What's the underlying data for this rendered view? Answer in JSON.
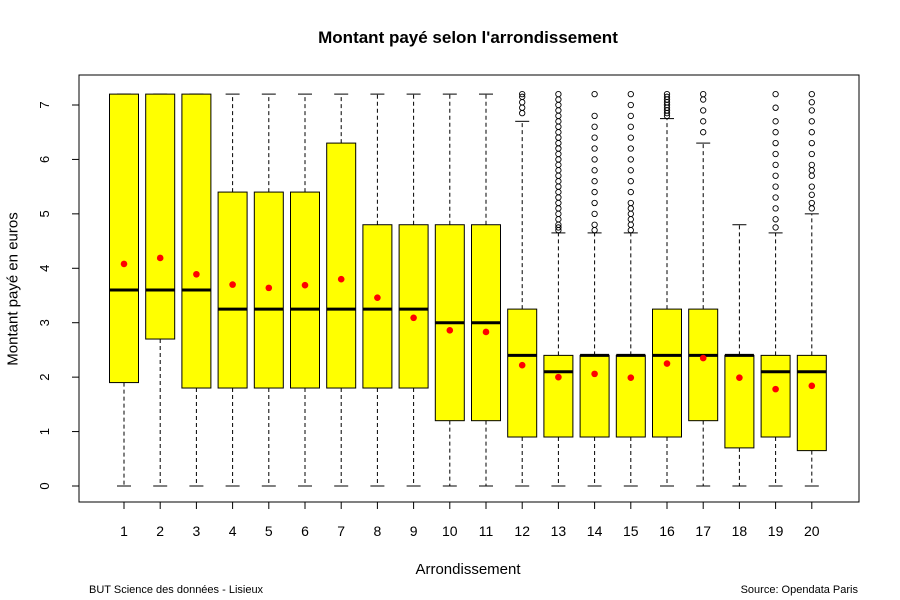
{
  "chart_data": {
    "type": "boxplot",
    "title": "Montant payé selon l'arrondissement",
    "xlabel": "Arrondissement",
    "ylabel": "Montant payé en euros",
    "ylim": [
      0,
      7.5
    ],
    "yticks": [
      0,
      1,
      2,
      3,
      4,
      5,
      6,
      7
    ],
    "grid": false,
    "colors": {
      "box_fill": "#ffff00",
      "mean_point": "#ff0000",
      "median": "#000000"
    },
    "categories": [
      "1",
      "2",
      "3",
      "4",
      "5",
      "6",
      "7",
      "8",
      "9",
      "10",
      "11",
      "12",
      "13",
      "14",
      "15",
      "16",
      "17",
      "18",
      "19",
      "20"
    ],
    "boxes": [
      {
        "min": 0,
        "q1": 1.9,
        "median": 3.6,
        "q3": 7.2,
        "max": 7.2,
        "mean": 4.08,
        "outliers": []
      },
      {
        "min": 0,
        "q1": 2.7,
        "median": 3.6,
        "q3": 7.2,
        "max": 7.2,
        "mean": 4.19,
        "outliers": []
      },
      {
        "min": 0,
        "q1": 1.8,
        "median": 3.6,
        "q3": 7.2,
        "max": 7.2,
        "mean": 3.89,
        "outliers": []
      },
      {
        "min": 0,
        "q1": 1.8,
        "median": 3.25,
        "q3": 5.4,
        "max": 7.2,
        "mean": 3.7,
        "outliers": []
      },
      {
        "min": 0,
        "q1": 1.8,
        "median": 3.25,
        "q3": 5.4,
        "max": 7.2,
        "mean": 3.64,
        "outliers": []
      },
      {
        "min": 0,
        "q1": 1.8,
        "median": 3.25,
        "q3": 5.4,
        "max": 7.2,
        "mean": 3.69,
        "outliers": []
      },
      {
        "min": 0,
        "q1": 1.8,
        "median": 3.25,
        "q3": 6.3,
        "max": 7.2,
        "mean": 3.8,
        "outliers": []
      },
      {
        "min": 0,
        "q1": 1.8,
        "median": 3.25,
        "q3": 4.8,
        "max": 7.2,
        "mean": 3.46,
        "outliers": []
      },
      {
        "min": 0,
        "q1": 1.8,
        "median": 3.25,
        "q3": 4.8,
        "max": 7.2,
        "mean": 3.09,
        "outliers": []
      },
      {
        "min": 0,
        "q1": 1.2,
        "median": 3.0,
        "q3": 4.8,
        "max": 7.2,
        "mean": 2.86,
        "outliers": []
      },
      {
        "min": 0,
        "q1": 1.2,
        "median": 3.0,
        "q3": 4.8,
        "max": 7.2,
        "mean": 2.83,
        "outliers": []
      },
      {
        "min": 0,
        "q1": 0.9,
        "median": 2.4,
        "q3": 3.25,
        "max": 6.7,
        "mean": 2.22,
        "outliers": [
          6.85,
          6.95,
          7.05,
          7.15,
          7.2
        ]
      },
      {
        "min": 0,
        "q1": 0.9,
        "median": 2.1,
        "q3": 2.4,
        "max": 4.65,
        "mean": 2.0,
        "outliers": [
          4.7,
          4.75,
          4.8,
          4.9,
          5.0,
          5.1,
          5.2,
          5.3,
          5.4,
          5.5,
          5.6,
          5.7,
          5.8,
          5.9,
          6.0,
          6.1,
          6.2,
          6.3,
          6.4,
          6.5,
          6.6,
          6.7,
          6.8,
          6.9,
          7.0,
          7.1,
          7.2
        ]
      },
      {
        "min": 0,
        "q1": 0.9,
        "median": 2.4,
        "q3": 2.4,
        "max": 4.65,
        "mean": 2.06,
        "outliers": [
          4.7,
          4.8,
          5.0,
          5.2,
          5.4,
          5.6,
          5.8,
          6.0,
          6.2,
          6.4,
          6.6,
          6.8,
          7.2
        ]
      },
      {
        "min": 0,
        "q1": 0.9,
        "median": 2.4,
        "q3": 2.4,
        "max": 4.65,
        "mean": 1.99,
        "outliers": [
          4.7,
          4.8,
          4.9,
          5.0,
          5.1,
          5.2,
          5.4,
          5.6,
          5.8,
          6.0,
          6.2,
          6.4,
          6.6,
          6.8,
          7.0,
          7.2
        ]
      },
      {
        "min": 0,
        "q1": 0.9,
        "median": 2.4,
        "q3": 3.25,
        "max": 6.75,
        "mean": 2.25,
        "outliers": [
          6.8,
          6.85,
          6.9,
          6.95,
          7.0,
          7.05,
          7.1,
          7.15,
          7.2
        ]
      },
      {
        "min": 0,
        "q1": 1.2,
        "median": 2.4,
        "q3": 3.25,
        "max": 6.3,
        "mean": 2.35,
        "outliers": [
          6.5,
          6.7,
          6.9,
          7.1,
          7.2
        ]
      },
      {
        "min": 0,
        "q1": 0.7,
        "median": 2.4,
        "q3": 2.4,
        "max": 4.8,
        "mean": 1.99,
        "outliers": []
      },
      {
        "min": 0,
        "q1": 0.9,
        "median": 2.1,
        "q3": 2.4,
        "max": 4.65,
        "mean": 1.78,
        "outliers": [
          4.75,
          4.9,
          5.1,
          5.3,
          5.5,
          5.7,
          5.9,
          6.1,
          6.3,
          6.5,
          6.7,
          6.95,
          7.2
        ]
      },
      {
        "min": 0,
        "q1": 0.65,
        "median": 2.1,
        "q3": 2.4,
        "max": 5.0,
        "mean": 1.84,
        "outliers": [
          5.1,
          5.2,
          5.35,
          5.5,
          5.7,
          5.8,
          5.9,
          6.1,
          6.3,
          6.5,
          6.7,
          6.9,
          7.05,
          7.2
        ]
      }
    ]
  },
  "footer": {
    "left": "BUT Science des données - Lisieux",
    "right": "Source: Opendata Paris"
  }
}
